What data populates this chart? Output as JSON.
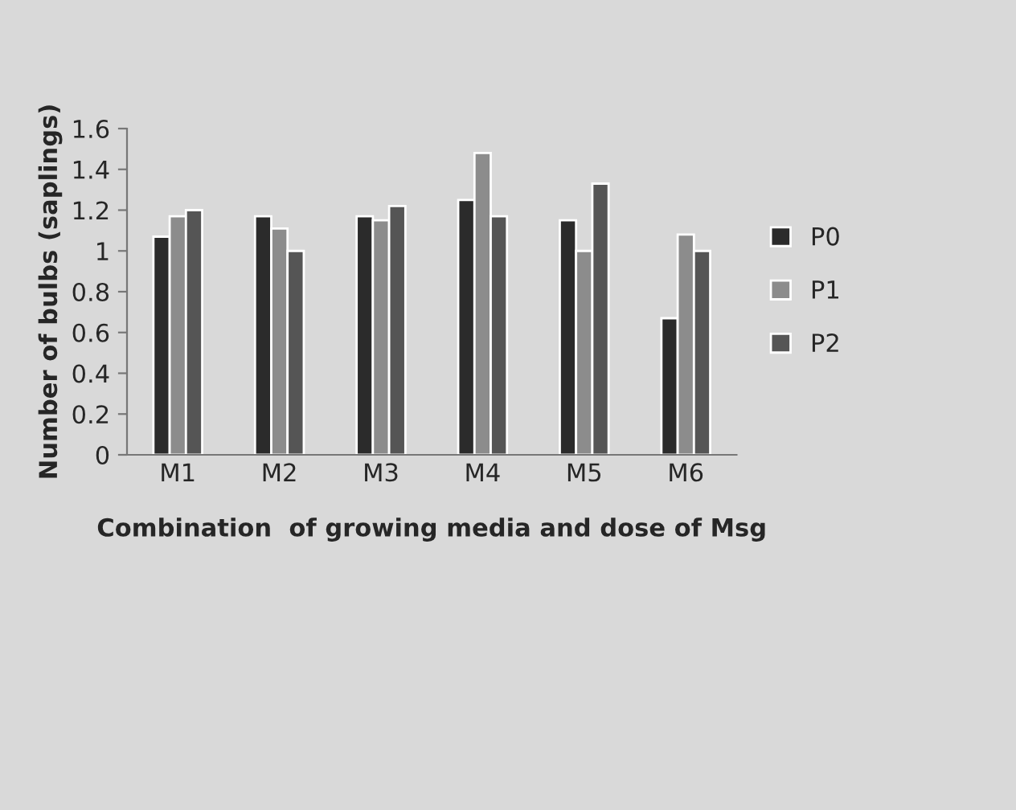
{
  "chart_data": {
    "type": "bar",
    "xlabel": "Combination  of growing media and dose of Msg",
    "ylabel": "Number of bulbs (saplings)",
    "categories": [
      "M1",
      "M2",
      "M3",
      "M4",
      "M5",
      "M6"
    ],
    "series": [
      {
        "name": "P0",
        "color": "#2b2b2b",
        "values": [
          1.07,
          1.17,
          1.17,
          1.25,
          1.15,
          0.67
        ]
      },
      {
        "name": "P1",
        "color": "#8c8c8c",
        "values": [
          1.17,
          1.11,
          1.15,
          1.48,
          1.0,
          1.08
        ]
      },
      {
        "name": "P2",
        "color": "#555555",
        "values": [
          1.2,
          1.0,
          1.22,
          1.17,
          1.33,
          1.0
        ]
      }
    ],
    "ylim": [
      0,
      1.6
    ],
    "yticks": [
      0,
      0.2,
      0.4,
      0.6,
      0.8,
      1,
      1.2,
      1.4,
      1.6
    ],
    "grid": false,
    "legend": "right"
  }
}
